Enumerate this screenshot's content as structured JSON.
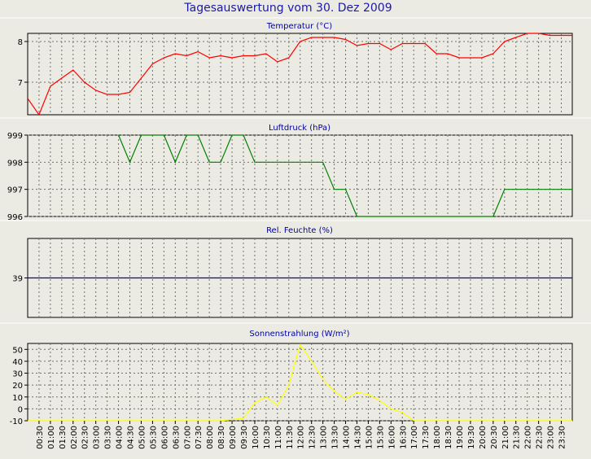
{
  "page_title": "Tagesauswertung vom 30. Dez 2009",
  "colors": {
    "background": "#ebebe3",
    "plot_background": "#ebebe3",
    "title": "#1a1aa6",
    "panel_title": "#0000a0",
    "grid": "#707070",
    "axis_text": "#000000"
  },
  "x_tick_labels": [
    "00:30",
    "01:00",
    "01:30",
    "02:00",
    "02:30",
    "03:00",
    "03:30",
    "04:00",
    "04:30",
    "05:00",
    "05:30",
    "06:00",
    "06:30",
    "07:00",
    "07:30",
    "08:00",
    "08:30",
    "09:00",
    "09:30",
    "10:00",
    "10:30",
    "11:00",
    "11:30",
    "12:00",
    "12:30",
    "13:00",
    "13:30",
    "14:00",
    "14:30",
    "15:00",
    "15:30",
    "16:00",
    "16:30",
    "17:00",
    "17:30",
    "18:00",
    "18:30",
    "19:00",
    "19:30",
    "20:00",
    "20:30",
    "21:00",
    "21:30",
    "22:00",
    "22:30",
    "23:00",
    "23:30"
  ],
  "chart_data": [
    {
      "type": "line",
      "title": "Temperatur (°C)",
      "color": "#ff0000",
      "y_ticks": [
        "7",
        "8"
      ],
      "ylim": [
        6.2,
        8.2
      ],
      "grid": true,
      "x": [
        "00:00",
        "00:30",
        "01:00",
        "01:30",
        "02:00",
        "02:30",
        "03:00",
        "03:30",
        "04:00",
        "04:30",
        "05:00",
        "05:30",
        "06:00",
        "06:30",
        "07:00",
        "07:30",
        "08:00",
        "08:30",
        "09:00",
        "09:30",
        "10:00",
        "10:30",
        "11:00",
        "11:30",
        "12:00",
        "12:30",
        "13:00",
        "13:30",
        "14:00",
        "14:30",
        "15:00",
        "15:30",
        "16:00",
        "16:30",
        "17:00",
        "17:30",
        "18:00",
        "18:30",
        "19:00",
        "19:30",
        "20:00",
        "20:30",
        "21:00",
        "21:30",
        "22:00",
        "22:30",
        "23:00",
        "23:30",
        "23:59"
      ],
      "values": [
        6.6,
        6.2,
        6.9,
        7.1,
        7.3,
        7.0,
        6.8,
        6.7,
        6.7,
        6.75,
        7.1,
        7.45,
        7.6,
        7.7,
        7.65,
        7.75,
        7.6,
        7.65,
        7.6,
        7.65,
        7.65,
        7.7,
        7.5,
        7.6,
        8.0,
        8.1,
        8.1,
        8.1,
        8.05,
        7.9,
        7.95,
        7.95,
        7.8,
        7.95,
        7.95,
        7.95,
        7.7,
        7.7,
        7.6,
        7.6,
        7.6,
        7.7,
        8.0,
        8.1,
        8.2,
        8.2,
        8.15,
        8.15,
        8.15
      ]
    },
    {
      "type": "line",
      "title": "Luftdruck (hPa)",
      "color": "#008000",
      "y_ticks": [
        "996",
        "997",
        "998",
        "999"
      ],
      "ylim": [
        996,
        999
      ],
      "grid": true,
      "x": [
        "04:00",
        "04:30",
        "05:00",
        "06:00",
        "06:30",
        "07:00",
        "07:30",
        "08:00",
        "08:30",
        "09:00",
        "09:30",
        "10:00",
        "13:00",
        "13:30",
        "14:00",
        "14:30",
        "20:30",
        "21:00",
        "23:59"
      ],
      "values": [
        999,
        998,
        999,
        999,
        998,
        999,
        999,
        998,
        998,
        999,
        999,
        998,
        998,
        997,
        997,
        996,
        996,
        997,
        997
      ]
    },
    {
      "type": "line",
      "title": "Rel. Feuchte (%)",
      "color": "#0000cc",
      "y_ticks": [
        "39"
      ],
      "ylim": [
        38,
        40
      ],
      "grid": true,
      "x": [
        "00:00",
        "23:59"
      ],
      "values": [
        39,
        39
      ]
    },
    {
      "type": "line",
      "title": "Sonnenstrahlung (W/m²)",
      "color": "#ffff00",
      "y_ticks": [
        "-10",
        "0",
        "10",
        "20",
        "30",
        "40",
        "50"
      ],
      "ylim": [
        -10,
        55
      ],
      "grid": true,
      "x": [
        "00:00",
        "08:30",
        "09:00",
        "09:30",
        "10:00",
        "10:30",
        "11:00",
        "11:30",
        "12:00",
        "12:30",
        "13:00",
        "13:30",
        "14:00",
        "14:30",
        "15:00",
        "15:30",
        "16:00",
        "16:30",
        "17:00",
        "23:59"
      ],
      "values": [
        -10,
        -10,
        -9,
        -8,
        5,
        10,
        3,
        20,
        54,
        40,
        25,
        15,
        8,
        14,
        12,
        7,
        0,
        -3,
        -10,
        -10
      ]
    }
  ]
}
